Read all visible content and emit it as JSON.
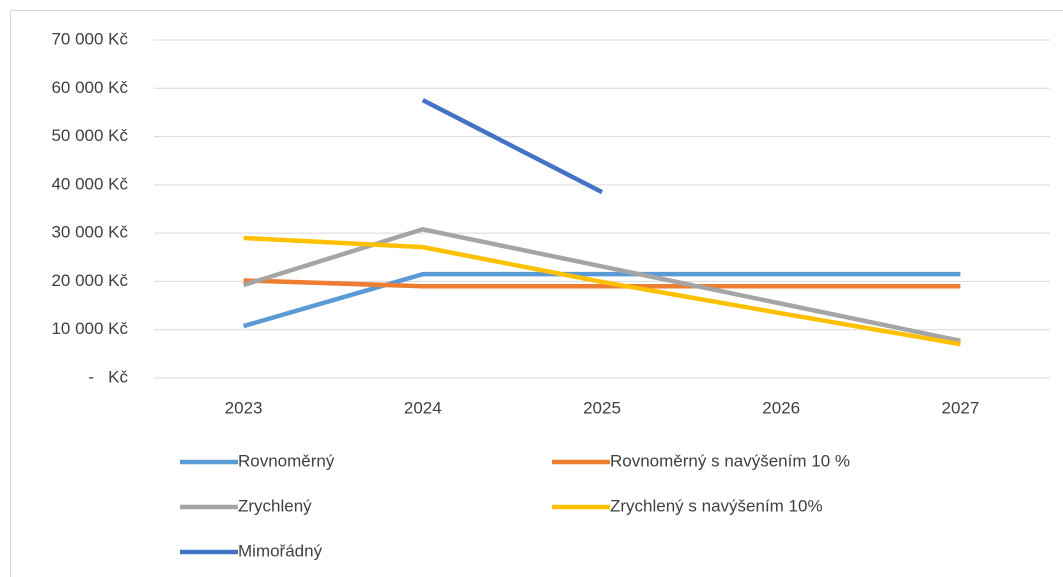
{
  "chart_data": {
    "type": "line",
    "categories": [
      "2023",
      "2024",
      "2025",
      "2026",
      "2027"
    ],
    "series": [
      {
        "name": "Rovnoměrný",
        "color": "#5b9bd5",
        "values": [
          10750,
          21500,
          21500,
          21500,
          21500
        ]
      },
      {
        "name": "Rovnoměrný s navýšením 10 %",
        "color": "#ed7d31",
        "values": [
          20200,
          19000,
          19000,
          19000,
          19000
        ]
      },
      {
        "name": "Zrychlený",
        "color": "#a5a5a5",
        "values": [
          19250,
          30800,
          23100,
          15400,
          7700
        ]
      },
      {
        "name": "Zrychlený s navýšením 10%",
        "color": "#ffc000",
        "values": [
          29000,
          27100,
          19900,
          13400,
          7000
        ]
      },
      {
        "name": "Mimořádný",
        "color": "#4472c4",
        "values": [
          null,
          57550,
          38500,
          null,
          null
        ]
      }
    ],
    "ylim": [
      0,
      70000
    ],
    "yticks": [
      {
        "value": 0,
        "label": " -   Kč"
      },
      {
        "value": 10000,
        "label": "10 000 Kč"
      },
      {
        "value": 20000,
        "label": "20 000 Kč"
      },
      {
        "value": 30000,
        "label": "30 000 Kč"
      },
      {
        "value": 40000,
        "label": "40 000 Kč"
      },
      {
        "value": 50000,
        "label": "50 000 Kč"
      },
      {
        "value": 60000,
        "label": "60 000 Kč"
      },
      {
        "value": 70000,
        "label": "70 000 Kč"
      }
    ],
    "grid": true
  }
}
